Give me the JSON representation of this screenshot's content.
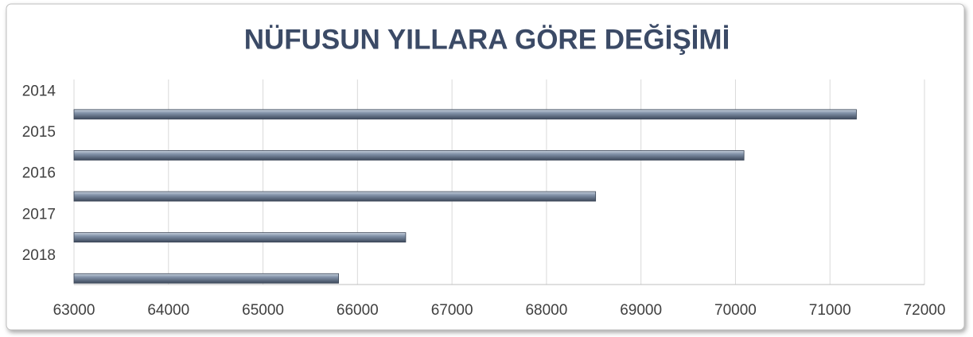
{
  "chart_data": {
    "type": "bar",
    "orientation": "horizontal",
    "title": "NÜFUSUN YILLARA GÖRE DEĞİŞİMİ",
    "categories": [
      "2014",
      "2015",
      "2016",
      "2017",
      "2018"
    ],
    "values": [
      71280,
      70090,
      68520,
      66510,
      65800
    ],
    "color": "#5b6b82",
    "xlim": [
      63000,
      72000
    ],
    "xticks": [
      63000,
      64000,
      65000,
      66000,
      67000,
      68000,
      69000,
      70000,
      71000,
      72000
    ],
    "grid": true
  }
}
